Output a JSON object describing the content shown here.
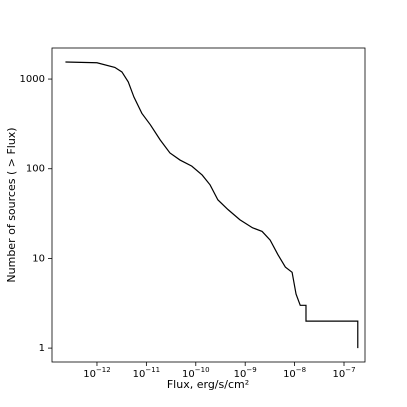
{
  "chart_data": {
    "type": "line",
    "x_label": "Flux, erg/s/cm²",
    "y_label": "Number of sources ( > Flux)",
    "xscale": "log",
    "yscale": "log",
    "xlim": [
      1.23e-13,
      2.66e-07
    ],
    "ylim": [
      0.7,
      2220
    ],
    "xticks": [
      {
        "value": 1e-12,
        "label": "10−12"
      },
      {
        "value": 1e-11,
        "label": "10−11"
      },
      {
        "value": 1e-10,
        "label": "10−10"
      },
      {
        "value": 1e-09,
        "label": "10−9"
      },
      {
        "value": 1e-08,
        "label": "10−8"
      },
      {
        "value": 1e-07,
        "label": "10−7"
      }
    ],
    "yticks": [
      1,
      10,
      100,
      1000
    ],
    "series": [
      {
        "color": "#000000",
        "x": [
          2.3e-13,
          1e-12,
          2.3e-12,
          3.2e-12,
          4.3e-12,
          5.6e-12,
          8.1e-12,
          1.2e-11,
          1.9e-11,
          3e-11,
          4.8e-11,
          8.3e-11,
          1.35e-10,
          1.95e-10,
          2.8e-10,
          4.5e-10,
          7.8e-10,
          1.4e-09,
          2.2e-09,
          3.2e-09,
          4.6e-09,
          6.5e-09,
          8.9e-09,
          1.07e-08,
          1.3e-08,
          1.7e-08,
          1.7e-08,
          1.9e-07,
          1.9e-07
        ],
        "values": [
          1550,
          1520,
          1350,
          1200,
          930,
          630,
          415,
          310,
          210,
          150,
          125,
          107,
          85,
          66,
          45,
          35,
          27,
          22,
          20,
          16,
          11,
          8,
          7,
          4,
          3,
          3,
          2,
          2,
          1
        ]
      }
    ]
  }
}
